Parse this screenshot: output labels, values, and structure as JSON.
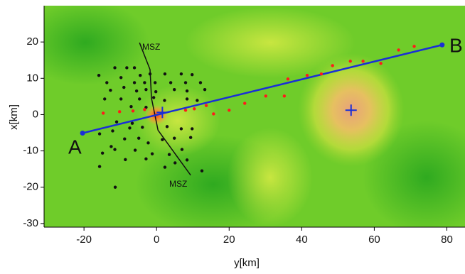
{
  "chart_data": {
    "type": "scatter",
    "xlabel": "y[km]",
    "ylabel": "x[km]",
    "xlim": [
      -31,
      85
    ],
    "ylim": [
      -31,
      30
    ],
    "xticks": [
      -20,
      0,
      20,
      40,
      60,
      80
    ],
    "yticks": [
      -30,
      -20,
      -10,
      0,
      10,
      20
    ],
    "annotations": [
      "A",
      "B",
      "MSZ",
      "MSZ"
    ],
    "series": [
      {
        "marker": "line",
        "color": "#111111",
        "x": [
          -4.7,
          -1.8,
          -1.4,
          0.4,
          9.4
        ],
        "values": [
          19.8,
          12.4,
          4.5,
          -4.3,
          -16.7
        ]
      },
      {
        "marker": "dot",
        "color": "#111111",
        "x": [
          -15.9,
          -11.5,
          -8.2,
          -6.1,
          -13.7,
          -9.8,
          -4.5,
          -1.8,
          2.3,
          6.8,
          9.8,
          -6.1,
          -3.3,
          -0.4,
          3.9,
          8.0,
          12.1,
          -12.7,
          -9.0,
          -5.5,
          -2.9,
          -0.2,
          4.9,
          8.4,
          13.3,
          -14.3,
          -9.8,
          -4.7,
          -0.8,
          2.2,
          8.4,
          11.2,
          -7.0,
          -2.9,
          -11.0,
          -6.7,
          -15.7,
          -12.1,
          -7.4,
          -3.9,
          2.9,
          6.8,
          9.8,
          -12.5,
          -8.8,
          -4.9,
          -2.3,
          1.6,
          4.9,
          9.4,
          -14.9,
          -11.5,
          -5.9,
          -1.2,
          3.5,
          7.0,
          -8.6,
          -2.9,
          5.1,
          8.4,
          -15.7,
          2.3,
          12.5,
          -11.4
        ],
        "values": [
          10.8,
          12.9,
          12.9,
          12.9,
          8.8,
          10.2,
          10.8,
          11.2,
          11.2,
          11.2,
          11.0,
          8.8,
          8.8,
          8.8,
          8.8,
          8.8,
          8.8,
          6.7,
          7.5,
          6.5,
          6.9,
          6.3,
          6.9,
          6.5,
          6.9,
          4.3,
          4.3,
          4.3,
          4.7,
          3.9,
          4.3,
          3.9,
          2.2,
          2.0,
          -2.0,
          -2.4,
          -5.3,
          -4.5,
          -3.7,
          -3.5,
          -3.3,
          -3.9,
          -3.9,
          -8.8,
          -6.7,
          -6.5,
          -7.8,
          -6.9,
          -6.5,
          -6.3,
          -10.6,
          -9.6,
          -9.8,
          -10.8,
          -11.0,
          -9.6,
          -12.4,
          -12.2,
          -13.3,
          -12.5,
          -14.3,
          -14.5,
          -15.5,
          -20.0
        ]
      },
      {
        "marker": "line",
        "color": "#1a2fd6",
        "x": [
          -20.4,
          78.7
        ],
        "values": [
          -5.1,
          19.2
        ]
      },
      {
        "marker": "dot",
        "color": "#ff1a1a",
        "x": [
          -14.7,
          -10.2,
          -6.5,
          -3.3,
          8.0,
          10.4,
          13.7,
          15.7,
          20.0,
          24.3,
          30.1,
          35.2,
          36.2,
          41.5,
          45.4,
          48.5,
          53.4,
          56.9,
          61.8,
          66.7,
          71.0
        ],
        "values": [
          0.4,
          0.8,
          1.0,
          1.4,
          1.2,
          1.6,
          2.5,
          0.2,
          1.2,
          3.1,
          5.1,
          5.1,
          9.8,
          10.8,
          11.2,
          13.5,
          14.7,
          14.7,
          14.1,
          17.8,
          18.8
        ]
      },
      {
        "marker": "plus",
        "color": "#1a2fd6",
        "x": [
          1.6,
          53.6
        ],
        "values": [
          0.6,
          1.2
        ]
      }
    ]
  }
}
